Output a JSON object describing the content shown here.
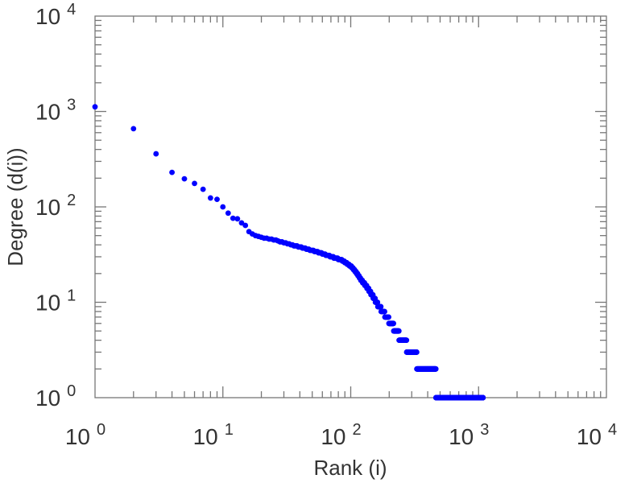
{
  "chart_data": {
    "type": "scatter",
    "title": "",
    "xlabel": "Rank (i)",
    "ylabel": "Degree (d(i))",
    "xscale": "log",
    "yscale": "log",
    "xlim": [
      1,
      10000
    ],
    "ylim": [
      1,
      10000
    ],
    "x_ticks": [
      {
        "base": "10",
        "exp": "0"
      },
      {
        "base": "10",
        "exp": "1"
      },
      {
        "base": "10",
        "exp": "2"
      },
      {
        "base": "10",
        "exp": "3"
      },
      {
        "base": "10",
        "exp": "4"
      }
    ],
    "y_ticks": [
      {
        "base": "10",
        "exp": "0"
      },
      {
        "base": "10",
        "exp": "1"
      },
      {
        "base": "10",
        "exp": "2"
      },
      {
        "base": "10",
        "exp": "3"
      },
      {
        "base": "10",
        "exp": "4"
      }
    ],
    "marker_color": "#0000ff",
    "grid": false,
    "degree_runs": [
      [
        1120,
        1
      ],
      [
        660,
        1
      ],
      [
        360,
        1
      ],
      [
        230,
        1
      ],
      [
        197,
        1
      ],
      [
        176,
        1
      ],
      [
        153,
        1
      ],
      [
        124,
        1
      ],
      [
        120,
        1
      ],
      [
        100,
        1
      ],
      [
        86,
        1
      ],
      [
        76,
        1
      ],
      [
        75,
        1
      ],
      [
        68,
        1
      ],
      [
        64,
        1
      ],
      [
        55,
        1
      ],
      [
        52,
        1
      ],
      [
        50,
        1
      ],
      [
        49,
        1
      ],
      [
        48,
        1
      ],
      [
        47,
        2
      ],
      [
        46,
        2
      ],
      [
        45,
        2
      ],
      [
        44,
        1
      ],
      [
        43,
        2
      ],
      [
        42,
        2
      ],
      [
        41,
        2
      ],
      [
        40,
        2
      ],
      [
        39,
        3
      ],
      [
        38,
        3
      ],
      [
        37,
        3
      ],
      [
        36,
        3
      ],
      [
        35,
        4
      ],
      [
        34,
        4
      ],
      [
        33,
        4
      ],
      [
        32,
        4
      ],
      [
        31,
        5
      ],
      [
        30,
        5
      ],
      [
        29,
        6
      ],
      [
        28,
        6
      ],
      [
        27,
        4
      ],
      [
        26,
        4
      ],
      [
        25,
        4
      ],
      [
        24,
        4
      ],
      [
        23,
        3
      ],
      [
        22,
        3
      ],
      [
        21,
        3
      ],
      [
        20,
        3
      ],
      [
        19,
        3
      ],
      [
        18,
        3
      ],
      [
        17,
        4
      ],
      [
        16,
        5
      ],
      [
        15,
        5
      ],
      [
        14,
        5
      ],
      [
        13,
        5
      ],
      [
        12,
        6
      ],
      [
        11,
        6
      ],
      [
        10,
        7
      ],
      [
        9,
        10
      ],
      [
        8,
        12
      ],
      [
        7,
        14
      ],
      [
        6,
        18
      ],
      [
        5,
        22
      ],
      [
        4,
        35
      ],
      [
        3,
        55
      ],
      [
        2,
        135
      ],
      [
        1,
        620
      ]
    ]
  }
}
